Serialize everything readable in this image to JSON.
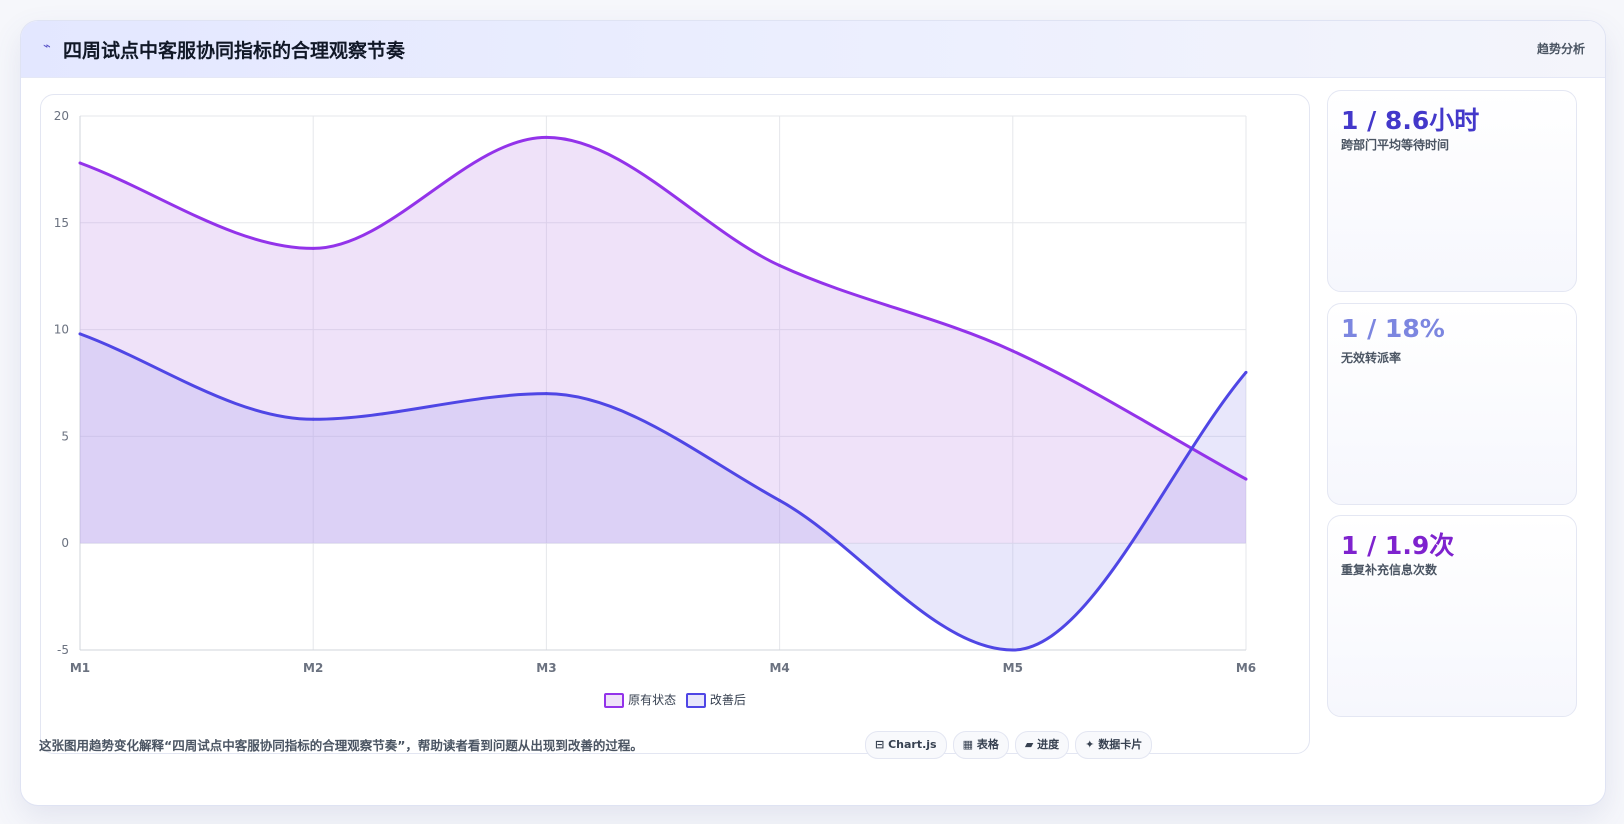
{
  "header": {
    "icon": "lightning-icon",
    "title": "四周试点中客服协同指标的合理观察节奏",
    "tag": "趋势分析"
  },
  "chart_data": {
    "type": "line",
    "filled": true,
    "smooth": true,
    "categories": [
      "M1",
      "M2",
      "M3",
      "M4",
      "M5",
      "M6"
    ],
    "series": [
      {
        "name": "原有状态",
        "values": [
          17.8,
          13.8,
          19,
          13,
          9,
          3
        ],
        "color": "#9333ea",
        "fill": "rgba(197,150,235,0.28)"
      },
      {
        "name": "改善后",
        "values": [
          9.8,
          5.8,
          7,
          2,
          -5,
          8
        ],
        "color": "#4f46e5",
        "fill": "rgba(165,160,240,0.25)"
      }
    ],
    "ylim": [
      -5,
      20
    ],
    "yticks": [
      20,
      15,
      10,
      5,
      0,
      -5
    ],
    "grid": true,
    "legend": "bottom"
  },
  "stats": [
    {
      "value": "1 / 8.6小时",
      "label": "跨部门平均等待时间",
      "color": "#4338ca"
    },
    {
      "value": "1 / 18%",
      "label": "无效转派率",
      "color": "#7c86e0"
    },
    {
      "value": "1 / 1.9次",
      "label": "重复补充信息次数",
      "color": "#7e22ce"
    }
  ],
  "footer": {
    "text": "这张图用趋势变化解释“四周试点中客服协同指标的合理观察节奏”，帮助读者看到问题从出现到改善的过程。",
    "chips": [
      {
        "icon": "chart-icon",
        "glyph": "⊟",
        "label": "Chart.js"
      },
      {
        "icon": "table-icon",
        "glyph": "▦",
        "label": "表格"
      },
      {
        "icon": "progress-icon",
        "glyph": "▰",
        "label": "进度"
      },
      {
        "icon": "card-icon",
        "glyph": "✦",
        "label": "数据卡片"
      }
    ]
  }
}
